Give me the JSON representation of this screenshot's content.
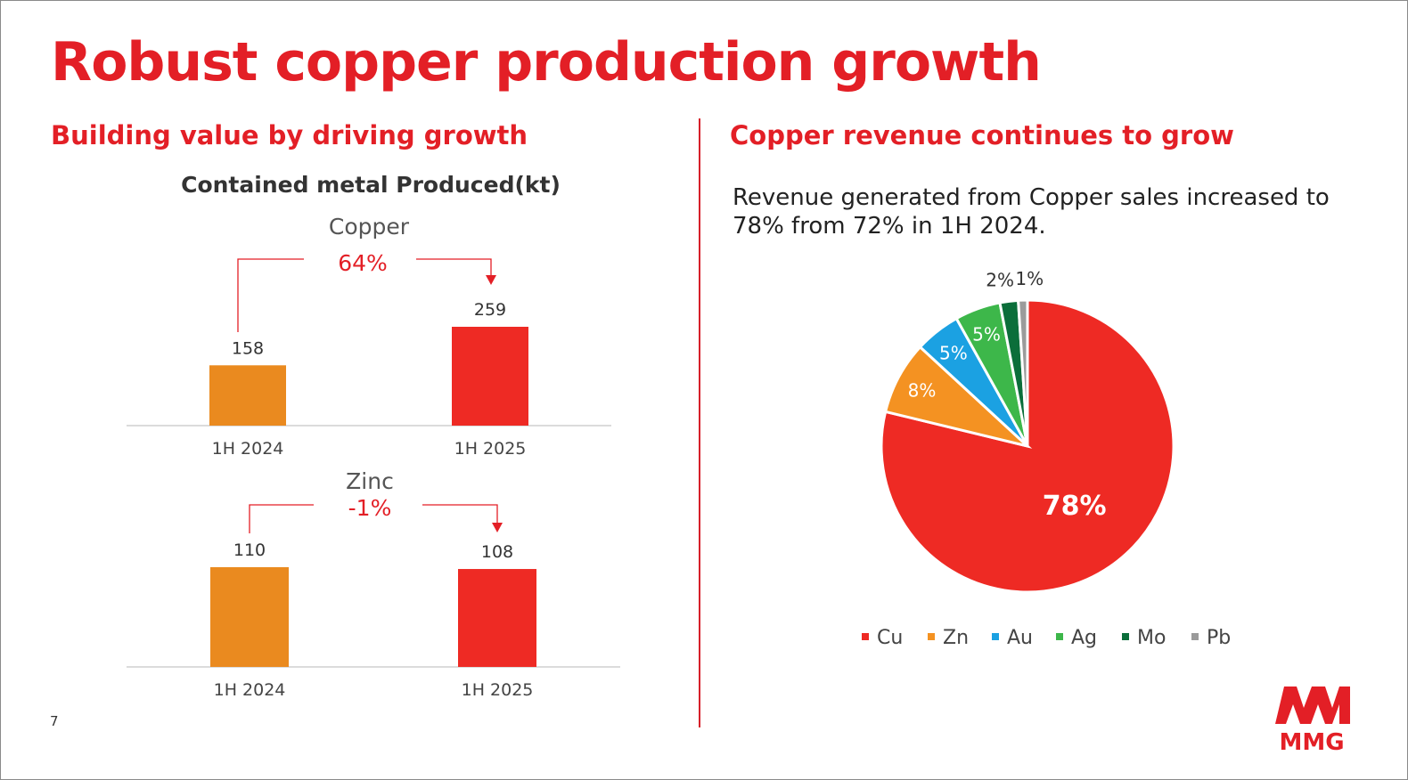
{
  "slide": {
    "title": "Robust copper production growth",
    "left_subtitle": "Building value by driving growth",
    "right_subtitle": "Copper revenue continues to grow",
    "description": "Revenue generated from Copper sales increased to 78% from 72% in 1H 2024.",
    "page_number": "7",
    "logo_text": "MMG"
  },
  "colors": {
    "brand_red": "#e31f26",
    "orange": "#ea8a1f",
    "red_bar": "#ee2a24"
  },
  "chart_data": [
    {
      "type": "bar",
      "title": "Contained metal Produced(kt)",
      "subtitle": "Copper",
      "change_label": "64%",
      "categories": [
        "1H 2024",
        "1H 2025"
      ],
      "values": [
        158,
        259
      ],
      "colors": [
        "#ea8a1f",
        "#ee2a24"
      ]
    },
    {
      "type": "bar",
      "subtitle": "Zinc",
      "change_label": "-1%",
      "categories": [
        "1H 2024",
        "1H 2025"
      ],
      "values": [
        110,
        108
      ],
      "colors": [
        "#ea8a1f",
        "#ee2a24"
      ]
    },
    {
      "type": "pie",
      "legend_position": "bottom",
      "slices": [
        {
          "label": "Cu",
          "value": 78,
          "display": "78%",
          "color": "#ee2a24"
        },
        {
          "label": "Zn",
          "value": 8,
          "display": "8%",
          "color": "#f49222"
        },
        {
          "label": "Au",
          "value": 5,
          "display": "5%",
          "color": "#1ba1e2"
        },
        {
          "label": "Ag",
          "value": 5,
          "display": "5%",
          "color": "#3db74a"
        },
        {
          "label": "Mo",
          "value": 2,
          "display": "2%",
          "color": "#0b6e3a"
        },
        {
          "label": "Pb",
          "value": 1,
          "display": "1%",
          "color": "#9b9b9b"
        }
      ]
    }
  ]
}
